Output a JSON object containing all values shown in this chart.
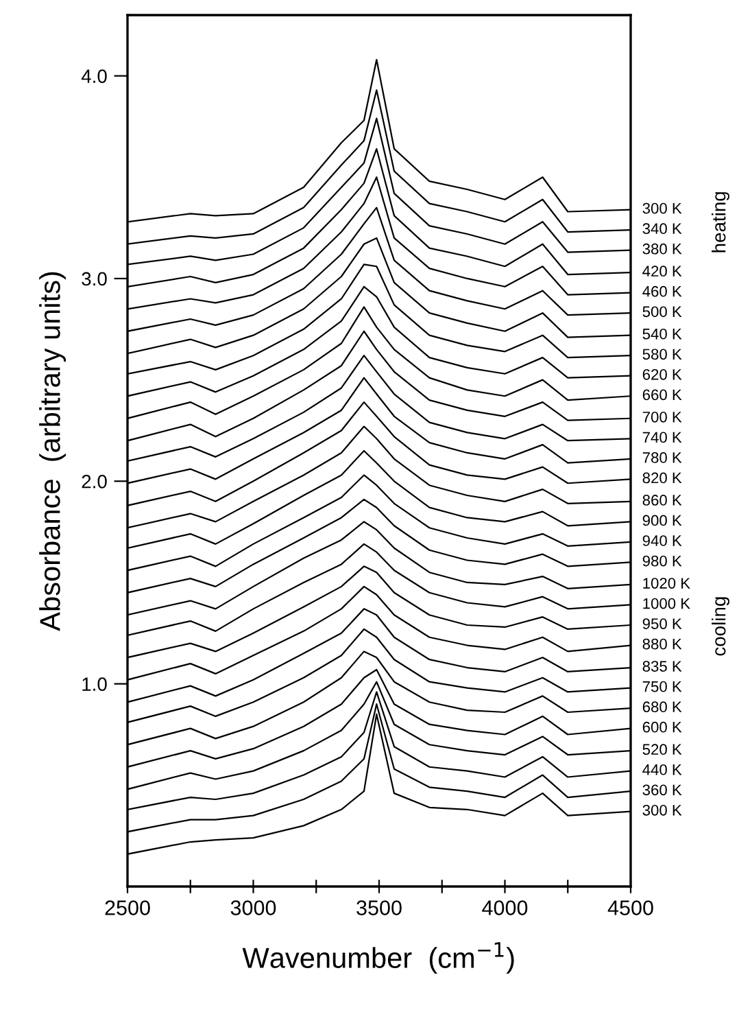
{
  "chart_data": {
    "type": "line",
    "xlabel": "Wavenumber  (cm$^{−1}$)",
    "ylabel": "Absorbance  (arbitrary units)",
    "annotations": [
      "heating",
      "cooling"
    ],
    "xlim": [
      2500,
      4500
    ],
    "ylim": [
      0,
      4.3
    ],
    "xticks": [
      2500,
      {
        "value": 2750,
        "label": null
      },
      3000,
      {
        "value": 3250,
        "label": null
      },
      3500,
      {
        "value": 3750,
        "label": null
      },
      4000,
      {
        "value": 4250,
        "label": null
      },
      4500
    ],
    "yticks": [
      {
        "value": 1,
        "label": "1.0"
      },
      {
        "value": 2,
        "label": "2.0"
      },
      {
        "value": 3,
        "label": "3.0"
      },
      {
        "value": 4,
        "label": "4.0"
      }
    ],
    "grid": false,
    "legend": false,
    "marker": "none",
    "line_style": "solid",
    "x": [
      2500,
      2750,
      2850,
      3000,
      3200,
      3350,
      3440,
      3490,
      3560,
      3700,
      3850,
      4000,
      4150,
      4250,
      4500
    ],
    "series": [
      {
        "name": "300 K",
        "color": "#000000",
        "values": [
          3.28,
          3.32,
          3.31,
          3.32,
          3.45,
          3.67,
          3.78,
          4.08,
          3.64,
          3.48,
          3.44,
          3.39,
          3.5,
          3.33,
          3.34
        ]
      },
      {
        "name": "340 K",
        "color": "#000000",
        "values": [
          3.17,
          3.21,
          3.2,
          3.22,
          3.35,
          3.56,
          3.68,
          3.93,
          3.53,
          3.37,
          3.33,
          3.28,
          3.39,
          3.23,
          3.24
        ]
      },
      {
        "name": "380 K",
        "color": "#000000",
        "values": [
          3.07,
          3.11,
          3.09,
          3.12,
          3.25,
          3.45,
          3.57,
          3.79,
          3.42,
          3.26,
          3.22,
          3.17,
          3.28,
          3.13,
          3.14
        ]
      },
      {
        "name": "420 K",
        "color": "#000000",
        "values": [
          2.96,
          3.01,
          2.98,
          3.02,
          3.15,
          3.34,
          3.47,
          3.64,
          3.31,
          3.15,
          3.11,
          3.06,
          3.17,
          3.02,
          3.03
        ]
      },
      {
        "name": "460 K",
        "color": "#000000",
        "values": [
          2.85,
          2.9,
          2.88,
          2.92,
          3.05,
          3.23,
          3.37,
          3.5,
          3.2,
          3.05,
          3.0,
          2.96,
          3.06,
          2.92,
          2.93
        ]
      },
      {
        "name": "500 K",
        "color": "#000000",
        "values": [
          2.74,
          2.8,
          2.77,
          2.82,
          2.95,
          3.12,
          3.27,
          3.35,
          3.09,
          2.94,
          2.89,
          2.85,
          2.94,
          2.82,
          2.83
        ]
      },
      {
        "name": "540 K",
        "color": "#000000",
        "values": [
          2.63,
          2.7,
          2.66,
          2.72,
          2.85,
          3.01,
          3.17,
          3.2,
          2.98,
          2.83,
          2.78,
          2.74,
          2.83,
          2.71,
          2.72
        ]
      },
      {
        "name": "580 K",
        "color": "#000000",
        "values": [
          2.53,
          2.59,
          2.55,
          2.62,
          2.75,
          2.9,
          3.07,
          3.06,
          2.87,
          2.72,
          2.67,
          2.64,
          2.72,
          2.61,
          2.62
        ]
      },
      {
        "name": "620 K",
        "color": "#000000",
        "values": [
          2.42,
          2.49,
          2.44,
          2.52,
          2.65,
          2.79,
          2.96,
          2.91,
          2.76,
          2.61,
          2.56,
          2.53,
          2.61,
          2.51,
          2.52
        ]
      },
      {
        "name": "660 K",
        "color": "#000000",
        "values": [
          2.31,
          2.39,
          2.33,
          2.42,
          2.55,
          2.68,
          2.86,
          2.76,
          2.65,
          2.51,
          2.45,
          2.42,
          2.5,
          2.4,
          2.42
        ]
      },
      {
        "name": "700 K",
        "color": "#000000",
        "values": [
          2.2,
          2.28,
          2.22,
          2.31,
          2.45,
          2.57,
          2.74,
          2.65,
          2.54,
          2.4,
          2.35,
          2.32,
          2.39,
          2.3,
          2.31
        ]
      },
      {
        "name": "740 K",
        "color": "#000000",
        "values": [
          2.1,
          2.17,
          2.12,
          2.21,
          2.34,
          2.46,
          2.62,
          2.54,
          2.43,
          2.29,
          2.24,
          2.21,
          2.28,
          2.2,
          2.21
        ]
      },
      {
        "name": "780 K",
        "color": "#000000",
        "values": [
          1.99,
          2.06,
          2.01,
          2.11,
          2.24,
          2.35,
          2.51,
          2.43,
          2.32,
          2.19,
          2.14,
          2.11,
          2.18,
          2.09,
          2.11
        ]
      },
      {
        "name": "820 K",
        "color": "#000000",
        "values": [
          1.88,
          1.95,
          1.9,
          2.0,
          2.14,
          2.25,
          2.39,
          2.32,
          2.22,
          2.08,
          2.03,
          2.01,
          2.07,
          1.99,
          2.01
        ]
      },
      {
        "name": "860 K",
        "color": "#000000",
        "values": [
          1.77,
          1.84,
          1.8,
          1.9,
          2.03,
          2.14,
          2.27,
          2.21,
          2.11,
          1.98,
          1.93,
          1.9,
          1.96,
          1.89,
          1.9
        ]
      },
      {
        "name": "900 K",
        "color": "#000000",
        "values": [
          1.67,
          1.74,
          1.69,
          1.79,
          1.93,
          2.03,
          2.15,
          2.09,
          2.0,
          1.87,
          1.82,
          1.8,
          1.85,
          1.78,
          1.8
        ]
      },
      {
        "name": "940 K",
        "color": "#000000",
        "values": [
          1.56,
          1.63,
          1.58,
          1.69,
          1.82,
          1.92,
          2.03,
          1.98,
          1.89,
          1.77,
          1.72,
          1.69,
          1.74,
          1.68,
          1.7
        ]
      },
      {
        "name": "980 K",
        "color": "#000000",
        "values": [
          1.45,
          1.52,
          1.48,
          1.59,
          1.72,
          1.82,
          1.91,
          1.87,
          1.78,
          1.66,
          1.61,
          1.59,
          1.64,
          1.58,
          1.6
        ]
      },
      {
        "name": "1020 K",
        "color": "#000000",
        "values": [
          1.34,
          1.41,
          1.37,
          1.48,
          1.62,
          1.71,
          1.8,
          1.76,
          1.67,
          1.55,
          1.5,
          1.49,
          1.53,
          1.47,
          1.49
        ]
      },
      {
        "name": "1000 K",
        "color": "#000000",
        "values": [
          1.24,
          1.31,
          1.26,
          1.37,
          1.5,
          1.59,
          1.69,
          1.65,
          1.56,
          1.45,
          1.4,
          1.38,
          1.43,
          1.37,
          1.39
        ]
      },
      {
        "name": "950 K",
        "color": "#000000",
        "values": [
          1.13,
          1.2,
          1.16,
          1.25,
          1.38,
          1.48,
          1.58,
          1.55,
          1.45,
          1.34,
          1.29,
          1.28,
          1.33,
          1.27,
          1.29
        ]
      },
      {
        "name": "880 K",
        "color": "#000000",
        "values": [
          1.02,
          1.1,
          1.05,
          1.14,
          1.26,
          1.37,
          1.48,
          1.44,
          1.34,
          1.23,
          1.19,
          1.17,
          1.23,
          1.16,
          1.19
        ]
      },
      {
        "name": "835 K",
        "color": "#000000",
        "values": [
          0.91,
          0.99,
          0.94,
          1.02,
          1.15,
          1.25,
          1.37,
          1.34,
          1.23,
          1.12,
          1.08,
          1.06,
          1.13,
          1.06,
          1.08
        ]
      },
      {
        "name": "750 K",
        "color": "#000000",
        "values": [
          0.81,
          0.89,
          0.84,
          0.91,
          1.03,
          1.14,
          1.27,
          1.23,
          1.12,
          1.01,
          0.98,
          0.96,
          1.03,
          0.96,
          0.98
        ]
      },
      {
        "name": "680 K",
        "color": "#000000",
        "values": [
          0.7,
          0.78,
          0.73,
          0.79,
          0.91,
          1.03,
          1.16,
          1.13,
          1.01,
          0.91,
          0.87,
          0.86,
          0.94,
          0.86,
          0.88
        ]
      },
      {
        "name": "600 K",
        "color": "#000000",
        "values": [
          0.59,
          0.67,
          0.63,
          0.68,
          0.79,
          0.9,
          1.03,
          1.07,
          0.9,
          0.8,
          0.77,
          0.75,
          0.84,
          0.75,
          0.78
        ]
      },
      {
        "name": "520 K",
        "color": "#000000",
        "values": [
          0.48,
          0.56,
          0.53,
          0.57,
          0.67,
          0.77,
          0.9,
          1.01,
          0.8,
          0.7,
          0.67,
          0.65,
          0.74,
          0.65,
          0.67
        ]
      },
      {
        "name": "440 K",
        "color": "#000000",
        "values": [
          0.38,
          0.44,
          0.43,
          0.46,
          0.55,
          0.64,
          0.76,
          0.96,
          0.69,
          0.59,
          0.57,
          0.54,
          0.64,
          0.54,
          0.57
        ]
      },
      {
        "name": "360 K",
        "color": "#000000",
        "values": [
          0.27,
          0.33,
          0.33,
          0.35,
          0.43,
          0.52,
          0.63,
          0.9,
          0.58,
          0.49,
          0.47,
          0.44,
          0.55,
          0.44,
          0.47
        ]
      },
      {
        "name": "300 K",
        "color": "#000000",
        "values": [
          0.16,
          0.22,
          0.23,
          0.24,
          0.3,
          0.38,
          0.47,
          0.85,
          0.46,
          0.39,
          0.38,
          0.35,
          0.46,
          0.35,
          0.37
        ]
      }
    ]
  }
}
